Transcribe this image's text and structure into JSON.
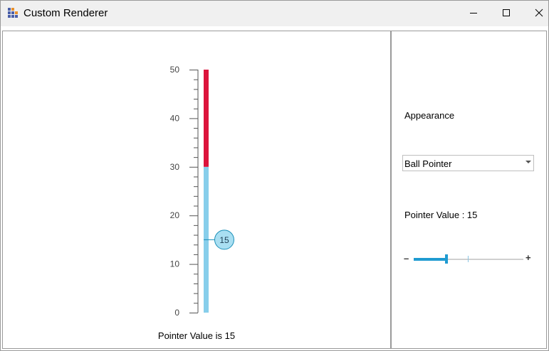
{
  "window": {
    "title": "Custom Renderer",
    "icon": "app-grid-icon",
    "controls": [
      "minimize-icon",
      "maximize-icon",
      "close-icon"
    ]
  },
  "gauge": {
    "min": 0,
    "max": 50,
    "major_ticks": [
      0,
      10,
      20,
      30,
      40,
      50
    ],
    "minor_ticks_per_major": 5,
    "value": 15,
    "value_label": "15",
    "range_low": {
      "from": 0,
      "to": 30,
      "color": "#87CEEB"
    },
    "range_high": {
      "from": 30,
      "to": 50,
      "color": "#DC143C"
    },
    "pointer_style": "ball",
    "caption": "Pointer Value is 15"
  },
  "sidebar": {
    "appearance_label": "Appearance",
    "pointer_type_selected": "Ball Pointer",
    "pointer_value_label": "Pointer Value : 15",
    "slider": {
      "minus_label": "–",
      "plus_label": "+",
      "value": 15,
      "min": 0,
      "max": 50,
      "accent": "#1f9bd1"
    }
  }
}
